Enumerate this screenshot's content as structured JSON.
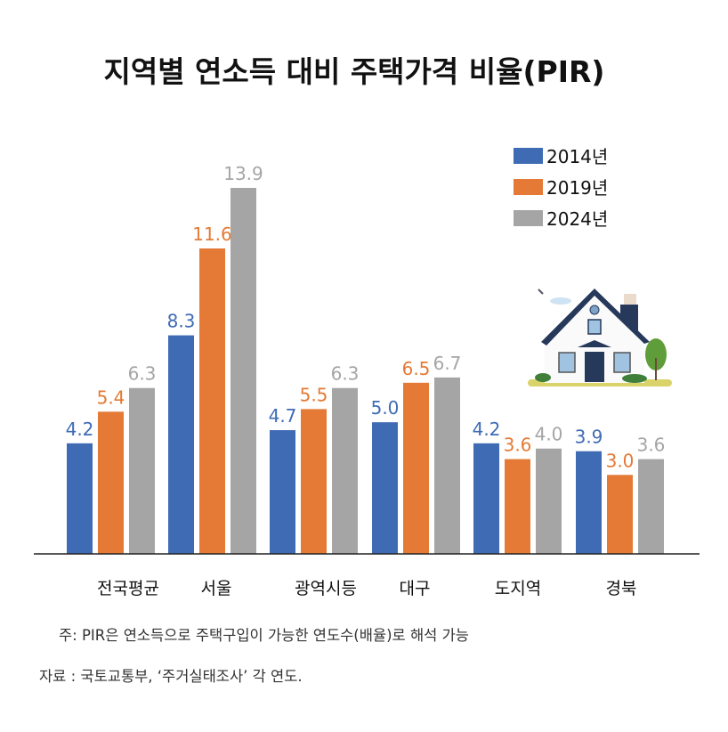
{
  "chart_data": {
    "type": "bar",
    "title": "지역별 연소득 대비 주택가격 비율(PIR)",
    "categories": [
      "전국평균",
      "서울",
      "광역시등",
      "대구",
      "도지역",
      "경북"
    ],
    "series": [
      {
        "name": "2014년",
        "color": "#3f6bb5",
        "values": [
          4.2,
          8.3,
          4.7,
          5.0,
          4.2,
          3.9
        ],
        "labels": [
          "4.2",
          "8.3",
          "4.7",
          "5.0",
          "4.2",
          "3.9"
        ]
      },
      {
        "name": "2019년",
        "color": "#e47a35",
        "values": [
          5.4,
          11.6,
          5.5,
          6.5,
          3.6,
          3.0
        ],
        "labels": [
          "5.4",
          "11.6",
          "5.5",
          "6.5",
          "3.6",
          "3.0"
        ]
      },
      {
        "name": "2024년",
        "color": "#a5a5a5",
        "values": [
          6.3,
          13.9,
          6.3,
          6.7,
          4.0,
          3.6
        ],
        "labels": [
          "6.3",
          "13.9",
          "6.3",
          "6.7",
          "4.0",
          "3.6"
        ]
      }
    ],
    "xlabel": "",
    "ylabel": "",
    "ylim": [
      0,
      13.9
    ],
    "grid": false,
    "legend_position": "top-right"
  },
  "footnote": "주: PIR은 연소득으로 주택구입이 가능한 연도수(배율)로 해석 가능",
  "source": "자료 : 국토교통부, ‘주거실태조사’ 각 연도.",
  "illustration": "house-icon"
}
